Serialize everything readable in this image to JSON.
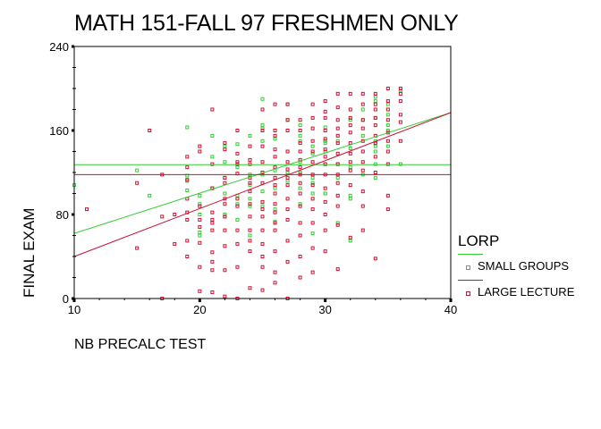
{
  "title": "MATH 151-FALL 97 FRESHMEN ONLY",
  "chart_data": {
    "type": "scatter",
    "title": "MATH 151-FALL 97 FRESHMEN ONLY",
    "xlabel": "NB PRECALC TEST",
    "ylabel": "FINAL EXAM",
    "xlim": [
      10,
      40
    ],
    "ylim": [
      0,
      240
    ],
    "xticks": [
      10,
      20,
      30,
      40
    ],
    "yticks": [
      0,
      80,
      160,
      240
    ],
    "grid": false,
    "legend_position": "right",
    "legend_title": "LORP",
    "series": [
      {
        "name": "SMALL GROUPS",
        "color": "#33cc33",
        "mean_line": 127.5,
        "fit_line": {
          "x": [
            10,
            40
          ],
          "y": [
            62,
            177
          ]
        },
        "points": [
          [
            10,
            108
          ],
          [
            15,
            122
          ],
          [
            16,
            98
          ],
          [
            19,
            163
          ],
          [
            19,
            117
          ],
          [
            19,
            112
          ],
          [
            19,
            103
          ],
          [
            20,
            98
          ],
          [
            20,
            90
          ],
          [
            20,
            80
          ],
          [
            20,
            63
          ],
          [
            20,
            60
          ],
          [
            21,
            155
          ],
          [
            21,
            135
          ],
          [
            21,
            105
          ],
          [
            22,
            145
          ],
          [
            22,
            130
          ],
          [
            22,
            115
          ],
          [
            22,
            100
          ],
          [
            22,
            80
          ],
          [
            22,
            78
          ],
          [
            23,
            147
          ],
          [
            23,
            128
          ],
          [
            23,
            125
          ],
          [
            23,
            98
          ],
          [
            23,
            90
          ],
          [
            23,
            75
          ],
          [
            24,
            155
          ],
          [
            24,
            118
          ],
          [
            24,
            108
          ],
          [
            24,
            95
          ],
          [
            24,
            88
          ],
          [
            24,
            60
          ],
          [
            25,
            190
          ],
          [
            25,
            165
          ],
          [
            25,
            162
          ],
          [
            25,
            150
          ],
          [
            25,
            118
          ],
          [
            25,
            102
          ],
          [
            25,
            88
          ],
          [
            26,
            152
          ],
          [
            26,
            122
          ],
          [
            26,
            105
          ],
          [
            26,
            85
          ],
          [
            26,
            73
          ],
          [
            27,
            185
          ],
          [
            27,
            170
          ],
          [
            27,
            140
          ],
          [
            27,
            120
          ],
          [
            27,
            112
          ],
          [
            28,
            165
          ],
          [
            28,
            155
          ],
          [
            28,
            150
          ],
          [
            28,
            130
          ],
          [
            28,
            120
          ],
          [
            28,
            105
          ],
          [
            28,
            90
          ],
          [
            29,
            145
          ],
          [
            29,
            138
          ],
          [
            29,
            115
          ],
          [
            29,
            110
          ],
          [
            29,
            100
          ],
          [
            29,
            62
          ],
          [
            30,
            163
          ],
          [
            30,
            150
          ],
          [
            30,
            148
          ],
          [
            30,
            140
          ],
          [
            30,
            128
          ],
          [
            30,
            100
          ],
          [
            30,
            100
          ],
          [
            31,
            150
          ],
          [
            31,
            128
          ],
          [
            31,
            115
          ],
          [
            31,
            72
          ],
          [
            32,
            170
          ],
          [
            32,
            143
          ],
          [
            32,
            125
          ],
          [
            32,
            98
          ],
          [
            32,
            95
          ],
          [
            32,
            55
          ],
          [
            33,
            180
          ],
          [
            33,
            170
          ],
          [
            33,
            155
          ],
          [
            33,
            118
          ],
          [
            34,
            192
          ],
          [
            34,
            188
          ],
          [
            34,
            172
          ],
          [
            34,
            150
          ],
          [
            34,
            145
          ],
          [
            34,
            140
          ],
          [
            34,
            128
          ],
          [
            34,
            115
          ],
          [
            35,
            185
          ],
          [
            35,
            175
          ],
          [
            35,
            165
          ],
          [
            35,
            160
          ],
          [
            35,
            145
          ],
          [
            36,
            198
          ],
          [
            36,
            128
          ]
        ]
      },
      {
        "name": "LARGE LECTURE",
        "color": "#cc1133",
        "mean_line": 118,
        "fit_line": {
          "x": [
            10,
            40
          ],
          "y": [
            40,
            177
          ]
        },
        "points": [
          [
            11,
            85
          ],
          [
            15,
            110
          ],
          [
            15,
            48
          ],
          [
            16,
            160
          ],
          [
            17,
            118
          ],
          [
            17,
            78
          ],
          [
            17,
            0
          ],
          [
            18,
            80
          ],
          [
            18,
            52
          ],
          [
            19,
            135
          ],
          [
            19,
            125
          ],
          [
            19,
            113
          ],
          [
            19,
            95
          ],
          [
            19,
            82
          ],
          [
            19,
            75
          ],
          [
            19,
            55
          ],
          [
            19,
            40
          ],
          [
            20,
            145
          ],
          [
            20,
            140
          ],
          [
            20,
            88
          ],
          [
            20,
            75
          ],
          [
            20,
            68
          ],
          [
            20,
            53
          ],
          [
            20,
            30
          ],
          [
            20,
            7
          ],
          [
            21,
            180
          ],
          [
            21,
            128
          ],
          [
            21,
            105
          ],
          [
            21,
            82
          ],
          [
            21,
            75
          ],
          [
            21,
            72
          ],
          [
            21,
            65
          ],
          [
            21,
            44
          ],
          [
            21,
            35
          ],
          [
            21,
            27
          ],
          [
            21,
            6
          ],
          [
            22,
            148
          ],
          [
            22,
            142
          ],
          [
            22,
            115
          ],
          [
            22,
            110
          ],
          [
            22,
            95
          ],
          [
            22,
            90
          ],
          [
            22,
            78
          ],
          [
            22,
            65
          ],
          [
            22,
            50
          ],
          [
            22,
            27
          ],
          [
            22,
            2
          ],
          [
            23,
            160
          ],
          [
            23,
            138
          ],
          [
            23,
            130
          ],
          [
            23,
            128
          ],
          [
            23,
            119
          ],
          [
            23,
            95
          ],
          [
            23,
            88
          ],
          [
            23,
            65
          ],
          [
            23,
            52
          ],
          [
            23,
            30
          ],
          [
            23,
            0
          ],
          [
            24,
            145
          ],
          [
            24,
            132
          ],
          [
            24,
            128
          ],
          [
            24,
            115
          ],
          [
            24,
            110
          ],
          [
            24,
            102
          ],
          [
            24,
            90
          ],
          [
            24,
            78
          ],
          [
            24,
            65
          ],
          [
            24,
            55
          ],
          [
            24,
            45
          ],
          [
            24,
            10
          ],
          [
            25,
            180
          ],
          [
            25,
            160
          ],
          [
            25,
            145
          ],
          [
            25,
            130
          ],
          [
            25,
            120
          ],
          [
            25,
            110
          ],
          [
            25,
            92
          ],
          [
            25,
            85
          ],
          [
            25,
            78
          ],
          [
            25,
            65
          ],
          [
            25,
            52
          ],
          [
            25,
            40
          ],
          [
            25,
            30
          ],
          [
            25,
            8
          ],
          [
            26,
            185
          ],
          [
            26,
            160
          ],
          [
            26,
            155
          ],
          [
            26,
            142
          ],
          [
            26,
            135
          ],
          [
            26,
            125
          ],
          [
            26,
            115
          ],
          [
            26,
            108
          ],
          [
            26,
            100
          ],
          [
            26,
            90
          ],
          [
            26,
            82
          ],
          [
            26,
            72
          ],
          [
            26,
            65
          ],
          [
            26,
            45
          ],
          [
            26,
            25
          ],
          [
            26,
            15
          ],
          [
            27,
            185
          ],
          [
            27,
            170
          ],
          [
            27,
            160
          ],
          [
            27,
            140
          ],
          [
            27,
            130
          ],
          [
            27,
            123
          ],
          [
            27,
            115
          ],
          [
            27,
            108
          ],
          [
            27,
            95
          ],
          [
            27,
            85
          ],
          [
            27,
            75
          ],
          [
            27,
            55
          ],
          [
            27,
            35
          ],
          [
            27,
            0
          ],
          [
            28,
            170
          ],
          [
            28,
            160
          ],
          [
            28,
            148
          ],
          [
            28,
            140
          ],
          [
            28,
            132
          ],
          [
            28,
            125
          ],
          [
            28,
            118
          ],
          [
            28,
            110
          ],
          [
            28,
            100
          ],
          [
            28,
            88
          ],
          [
            28,
            72
          ],
          [
            28,
            60
          ],
          [
            28,
            40
          ],
          [
            28,
            20
          ],
          [
            29,
            185
          ],
          [
            29,
            172
          ],
          [
            29,
            162
          ],
          [
            29,
            150
          ],
          [
            29,
            140
          ],
          [
            29,
            130
          ],
          [
            29,
            118
          ],
          [
            29,
            108
          ],
          [
            29,
            95
          ],
          [
            29,
            85
          ],
          [
            29,
            72
          ],
          [
            29,
            48
          ],
          [
            29,
            25
          ],
          [
            30,
            188
          ],
          [
            30,
            178
          ],
          [
            30,
            172
          ],
          [
            30,
            160
          ],
          [
            30,
            152
          ],
          [
            30,
            142
          ],
          [
            30,
            135
          ],
          [
            30,
            128
          ],
          [
            30,
            118
          ],
          [
            30,
            105
          ],
          [
            30,
            92
          ],
          [
            30,
            80
          ],
          [
            30,
            65
          ],
          [
            30,
            45
          ],
          [
            31,
            195
          ],
          [
            31,
            182
          ],
          [
            31,
            170
          ],
          [
            31,
            162
          ],
          [
            31,
            155
          ],
          [
            31,
            148
          ],
          [
            31,
            138
          ],
          [
            31,
            128
          ],
          [
            31,
            118
          ],
          [
            31,
            110
          ],
          [
            31,
            98
          ],
          [
            31,
            88
          ],
          [
            31,
            70
          ],
          [
            31,
            28
          ],
          [
            32,
            195
          ],
          [
            32,
            180
          ],
          [
            32,
            172
          ],
          [
            32,
            165
          ],
          [
            32,
            158
          ],
          [
            32,
            148
          ],
          [
            32,
            138
          ],
          [
            32,
            130
          ],
          [
            32,
            122
          ],
          [
            32,
            108
          ],
          [
            32,
            58
          ],
          [
            33,
            195
          ],
          [
            33,
            185
          ],
          [
            33,
            170
          ],
          [
            33,
            162
          ],
          [
            33,
            150
          ],
          [
            33,
            140
          ],
          [
            33,
            130
          ],
          [
            33,
            122
          ],
          [
            33,
            102
          ],
          [
            33,
            88
          ],
          [
            33,
            65
          ],
          [
            34,
            195
          ],
          [
            34,
            185
          ],
          [
            34,
            180
          ],
          [
            34,
            172
          ],
          [
            34,
            165
          ],
          [
            34,
            155
          ],
          [
            34,
            148
          ],
          [
            34,
            135
          ],
          [
            34,
            120
          ],
          [
            34,
            38
          ],
          [
            35,
            200
          ],
          [
            35,
            188
          ],
          [
            35,
            180
          ],
          [
            35,
            170
          ],
          [
            35,
            158
          ],
          [
            35,
            150
          ],
          [
            35,
            140
          ],
          [
            35,
            128
          ],
          [
            35,
            98
          ],
          [
            35,
            85
          ],
          [
            36,
            200
          ],
          [
            36,
            195
          ],
          [
            36,
            188
          ],
          [
            36,
            175
          ],
          [
            36,
            168
          ],
          [
            36,
            150
          ]
        ]
      }
    ]
  },
  "legend": {
    "title": "LORP",
    "items": [
      {
        "label": "SMALL GROUPS",
        "color": "#33cc33"
      },
      {
        "label": "LARGE LECTURE",
        "color": "#cc1133"
      }
    ]
  },
  "axes": {
    "xlabel": "NB PRECALC TEST",
    "ylabel": "FINAL EXAM"
  }
}
